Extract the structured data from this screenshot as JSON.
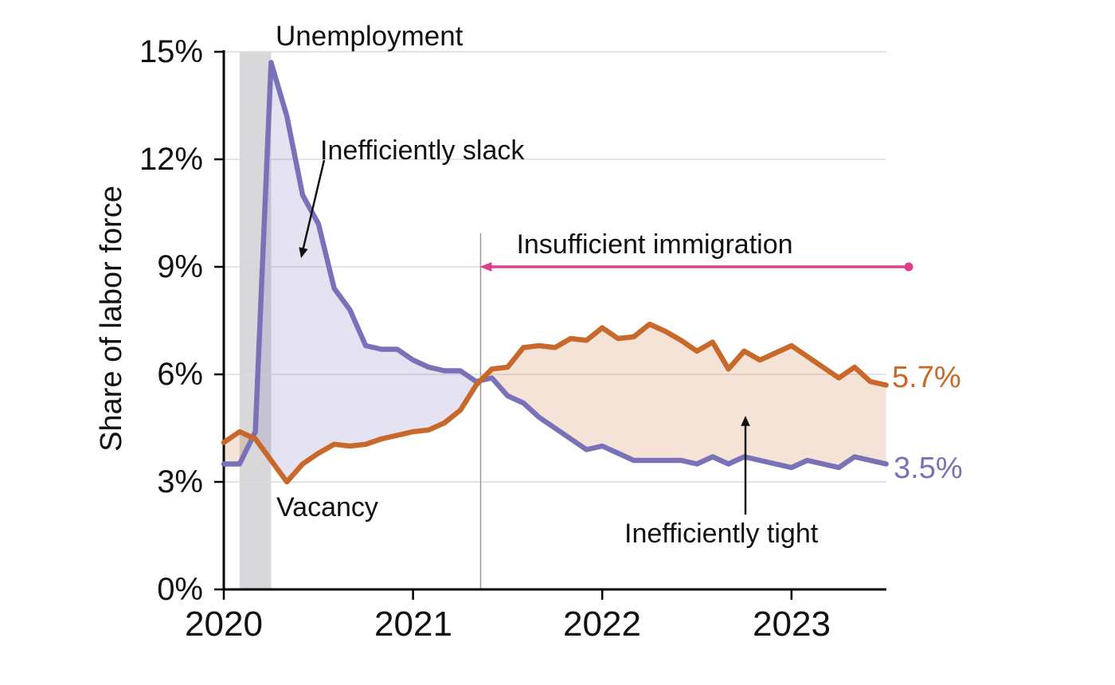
{
  "chart_data": {
    "type": "line",
    "title": "",
    "ylabel": "Share of labor force",
    "x_tick_labels": [
      "2020",
      "2021",
      "2022",
      "2023"
    ],
    "y_tick_labels": [
      "0%",
      "3%",
      "6%",
      "9%",
      "12%",
      "15%"
    ],
    "ylim": [
      0,
      15
    ],
    "x_start": "2020-01",
    "x_end": "2023-07",
    "frequency": "monthly",
    "series": [
      {
        "name": "Unemployment",
        "color": "#7A72B8",
        "fill": "rgba(124,116,186,0.20)",
        "values": [
          3.5,
          3.5,
          4.4,
          14.7,
          13.2,
          11.0,
          10.2,
          8.4,
          7.8,
          6.8,
          6.7,
          6.7,
          6.4,
          6.2,
          6.1,
          6.1,
          5.8,
          5.9,
          5.4,
          5.2,
          4.8,
          4.5,
          4.2,
          3.9,
          4.0,
          3.8,
          3.6,
          3.6,
          3.6,
          3.6,
          3.5,
          3.7,
          3.5,
          3.7,
          3.6,
          3.5,
          3.4,
          3.6,
          3.5,
          3.4,
          3.7,
          3.6,
          3.5
        ]
      },
      {
        "name": "Vacancy",
        "color": "#C8682A",
        "fill": "rgba(204,116,53,0.20)",
        "values": [
          4.1,
          4.4,
          4.2,
          3.6,
          3.0,
          3.5,
          3.8,
          4.05,
          4.0,
          4.05,
          4.2,
          4.3,
          4.4,
          4.45,
          4.65,
          5.0,
          5.7,
          6.15,
          6.2,
          6.75,
          6.8,
          6.75,
          7.0,
          6.95,
          7.3,
          7.0,
          7.05,
          7.4,
          7.2,
          6.95,
          6.65,
          6.9,
          6.15,
          6.65,
          6.4,
          6.6,
          6.8,
          6.5,
          6.2,
          5.9,
          6.2,
          5.8,
          5.7
        ]
      }
    ],
    "recession_band": {
      "from": "2020-02",
      "to": "2020-04",
      "start_index": 1,
      "end_index": 3,
      "color": "#D8D7DA"
    },
    "crossover_line": {
      "color": "#999999"
    },
    "annotations": {
      "unemployment": "Unemployment",
      "vacancy": "Vacancy",
      "slack": "Inefficiently slack",
      "tight": "Inefficiently tight",
      "immigration": "Insufficient immigration",
      "vacancy_end": "5.7%",
      "unemployment_end": "3.5%"
    },
    "colors": {
      "grid": "#DCDCDC",
      "axis": "#000000",
      "pink_arrow": "#E23D8B",
      "black_arrow": "#111111",
      "text": "#111111"
    },
    "legend_position": "none",
    "grid": true
  }
}
